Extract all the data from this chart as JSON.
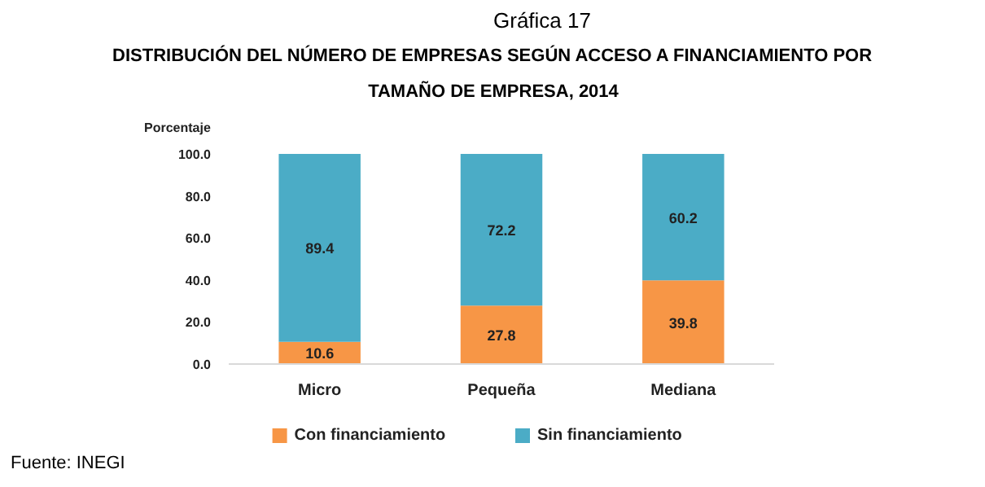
{
  "chart_data": {
    "type": "bar",
    "title": "Gráfica 17",
    "subtitle": "DISTRIBUCIÓN DEL NÚMERO DE EMPRESAS SEGÚN ACCESO A FINANCIAMIENTO POR\nTAMAÑO DE EMPRESA, 2014",
    "ylabel": "Porcentaje",
    "annotations": [
      "Fuente: INEGI"
    ],
    "categories": [
      "Micro",
      "Pequeña",
      "Mediana"
    ],
    "stacked": true,
    "series": [
      {
        "name": "Con financiamiento",
        "color": "#f79646",
        "values": [
          10.6,
          27.8,
          39.8
        ]
      },
      {
        "name": "Sin financiamiento",
        "color": "#4bacc6",
        "values": [
          89.4,
          72.2,
          60.2
        ]
      }
    ],
    "ylim": [
      0,
      100
    ],
    "yticks": [
      {
        "value": 0,
        "label": "0.0"
      },
      {
        "value": 20,
        "label": "20.0"
      },
      {
        "value": 40,
        "label": "40.0"
      },
      {
        "value": 60,
        "label": "60.0"
      },
      {
        "value": 80,
        "label": "80.0"
      },
      {
        "value": 100,
        "label": "100.0"
      }
    ],
    "data_labels": true,
    "grid": false,
    "legend": "bottom"
  }
}
